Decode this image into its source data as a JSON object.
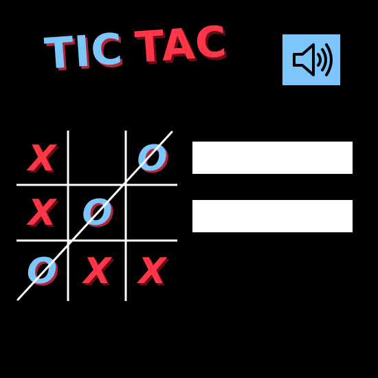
{
  "title": {
    "word_1": "TIC",
    "word_2": "TAC"
  },
  "sound_button": {
    "icon": "speaker-volume-icon"
  },
  "board": {
    "cells": [
      "X",
      "",
      "O",
      "X",
      "O",
      "",
      "O",
      "X",
      "X"
    ],
    "winning_line": "anti-diagonal"
  },
  "colors": {
    "x_mark": "#ff3548",
    "o_mark": "#7cc6fb",
    "grid": "#ffffff",
    "sound_button_bg": "#7cc6fb",
    "background": "#000000"
  },
  "score_bars": [
    "",
    ""
  ]
}
